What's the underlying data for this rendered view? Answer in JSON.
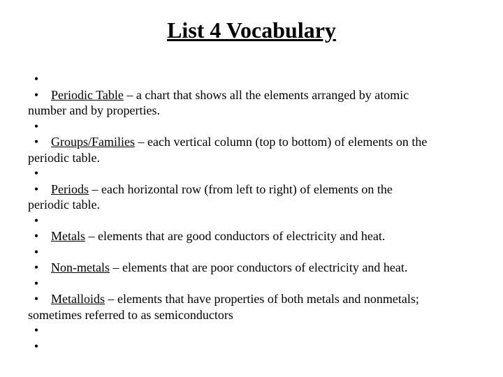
{
  "title": "List 4 Vocabulary",
  "bullet": "•",
  "items": [
    {
      "term": "Periodic Table",
      "def": " – a chart that shows all the elements arranged by atomic",
      "cont": "number and by properties."
    },
    {
      "term": "Groups/Families",
      "def": " – each vertical column (top to bottom) of elements on the",
      "cont": "periodic table."
    },
    {
      "term": "Periods",
      "def": " – each horizontal row (from left to right) of elements on the",
      "cont": "periodic table."
    },
    {
      "term": "Metals",
      "def": " – elements that are good conductors of electricity and heat.",
      "cont": ""
    },
    {
      "term": "Non-metals",
      "def": " – elements that are poor conductors of electricity and heat.",
      "cont": ""
    },
    {
      "term": "Metalloids",
      "def": " – elements that have properties of both metals and nonmetals;",
      "cont": "sometimes referred to as semiconductors"
    }
  ],
  "trailing_empty": 2,
  "styling": {
    "background_color": "#ffffff",
    "text_color": "#000000",
    "title_fontsize": 32,
    "body_fontsize": 18,
    "font_family": "Times New Roman"
  }
}
